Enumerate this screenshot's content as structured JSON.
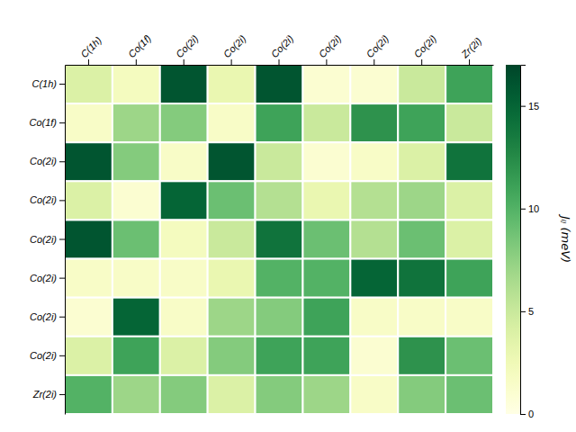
{
  "chart_data": {
    "type": "heatmap",
    "categories": [
      "C(1h)",
      "Co(1f)",
      "Co(2i)",
      "Co(2i)",
      "Co(2i)",
      "Co(2i)",
      "Co(2i)",
      "Co(2i)",
      "Zr(2i)"
    ],
    "values": [
      [
        4.0,
        2.0,
        16.0,
        3.0,
        16.0,
        1.0,
        1.0,
        5.0,
        11.0
      ],
      [
        1.5,
        7.0,
        8.0,
        1.5,
        11.0,
        5.0,
        12.0,
        11.0,
        5.0
      ],
      [
        16.0,
        8.0,
        1.5,
        16.0,
        5.0,
        1.0,
        1.5,
        4.0,
        14.0
      ],
      [
        4.0,
        1.0,
        15.0,
        9.0,
        6.0,
        3.0,
        6.0,
        7.0,
        4.0
      ],
      [
        16.0,
        9.0,
        2.0,
        5.0,
        14.0,
        9.0,
        6.0,
        9.0,
        4.0
      ],
      [
        1.5,
        1.5,
        1.5,
        3.0,
        10.0,
        10.0,
        15.0,
        14.0,
        11.0
      ],
      [
        1.0,
        15.0,
        1.5,
        7.0,
        8.0,
        11.0,
        1.5,
        1.5,
        1.5
      ],
      [
        4.0,
        11.0,
        4.0,
        8.0,
        11.0,
        11.0,
        1.0,
        12.0,
        9.0
      ],
      [
        10.0,
        7.0,
        8.0,
        4.0,
        8.0,
        7.0,
        1.5,
        8.0,
        9.0
      ]
    ],
    "color": "YlGn",
    "colorbar_label": "Jᵢⱼ (meV)",
    "colorbar_range": [
      0,
      17
    ],
    "colorbar_ticks": [
      0,
      5,
      10,
      15
    ],
    "grid": true
  }
}
